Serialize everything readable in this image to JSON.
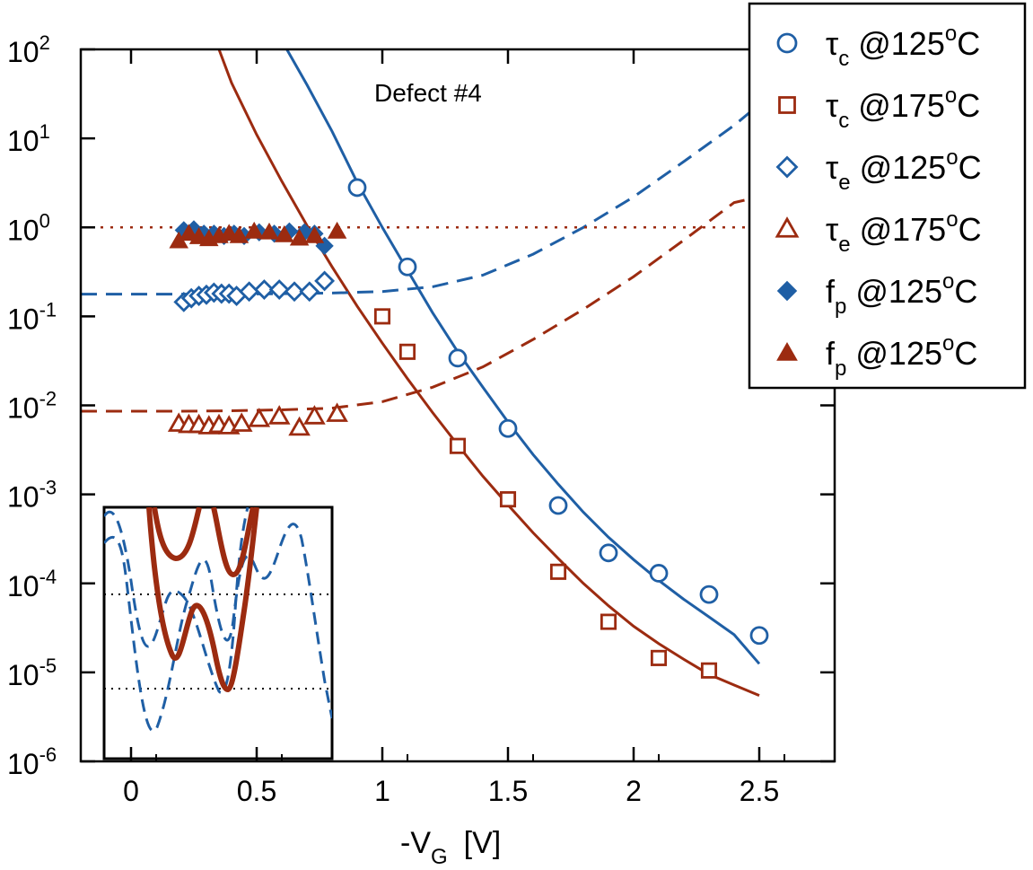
{
  "chart_data": {
    "type": "scatter",
    "x_scale": "linear",
    "y_scale": "log",
    "xlim": [
      -0.2,
      2.8
    ],
    "ylim": [
      1e-06,
      100
    ],
    "x_ticks": [
      0,
      0.5,
      1,
      1.5,
      2,
      2.5
    ],
    "x_tick_labels": [
      "0",
      "0.5",
      "1",
      "1.5",
      "2",
      "2.5"
    ],
    "y_ticks": [
      1e-06,
      1e-05,
      0.0001,
      0.001,
      0.01,
      0.1,
      1,
      10,
      100
    ],
    "y_tick_labels": [
      {
        "base": "10",
        "exp": "-6"
      },
      {
        "base": "10",
        "exp": "-5"
      },
      {
        "base": "10",
        "exp": "-4"
      },
      {
        "base": "10",
        "exp": "-3"
      },
      {
        "base": "10",
        "exp": "-2"
      },
      {
        "base": "10",
        "exp": "-1"
      },
      {
        "base": "10",
        "exp": "0"
      },
      {
        "base": "10",
        "exp": "1"
      },
      {
        "base": "10",
        "exp": "2"
      }
    ],
    "xlabel": {
      "main": "-V",
      "sub": "G",
      "unit": "[V]"
    },
    "ylabel": "",
    "annotation": "Defect #4",
    "grid": false,
    "legend_position": "top-right, outside",
    "colors": {
      "blue": "#1f5fa5",
      "red": "#9c2b10"
    },
    "series": [
      {
        "name": "τc @125°C",
        "label": {
          "sym": "τ",
          "sub": "c",
          "rest": " @125",
          "sup": "o",
          "tail": "C"
        },
        "marker": "circle-open",
        "color": "#1f5fa5",
        "points": [
          [
            0.9,
            2.8
          ],
          [
            1.1,
            0.36
          ],
          [
            1.3,
            0.034
          ],
          [
            1.5,
            0.0055
          ],
          [
            1.7,
            0.00075
          ],
          [
            1.9,
            0.00022
          ],
          [
            2.1,
            0.00013
          ],
          [
            2.3,
            7.5e-05
          ],
          [
            2.5,
            2.6e-05
          ]
        ]
      },
      {
        "name": "τc @175°C",
        "label": {
          "sym": "τ",
          "sub": "c",
          "rest": " @175",
          "sup": "o",
          "tail": "C"
        },
        "marker": "square-open",
        "color": "#9c2b10",
        "points": [
          [
            1.0,
            0.1
          ],
          [
            1.1,
            0.04
          ],
          [
            1.3,
            0.0035
          ],
          [
            1.5,
            0.00088
          ],
          [
            1.7,
            0.000135
          ],
          [
            1.9,
            3.7e-05
          ],
          [
            2.1,
            1.45e-05
          ],
          [
            2.3,
            1.05e-05
          ]
        ]
      },
      {
        "name": "τe @125°C",
        "label": {
          "sym": "τ",
          "sub": "e",
          "rest": " @125",
          "sup": "o",
          "tail": "C"
        },
        "marker": "diamond-open",
        "color": "#1f5fa5",
        "points": [
          [
            0.21,
            0.145
          ],
          [
            0.24,
            0.16
          ],
          [
            0.27,
            0.17
          ],
          [
            0.3,
            0.175
          ],
          [
            0.33,
            0.185
          ],
          [
            0.36,
            0.18
          ],
          [
            0.39,
            0.18
          ],
          [
            0.42,
            0.17
          ],
          [
            0.47,
            0.19
          ],
          [
            0.53,
            0.2
          ],
          [
            0.59,
            0.2
          ],
          [
            0.65,
            0.19
          ],
          [
            0.71,
            0.19
          ],
          [
            0.77,
            0.25
          ]
        ]
      },
      {
        "name": "τe @175°C",
        "label": {
          "sym": "τ",
          "sub": "e",
          "rest": " @175",
          "sup": "o",
          "tail": "C"
        },
        "marker": "triangle-open",
        "color": "#9c2b10",
        "points": [
          [
            0.19,
            0.0062
          ],
          [
            0.23,
            0.006
          ],
          [
            0.27,
            0.006
          ],
          [
            0.31,
            0.0058
          ],
          [
            0.35,
            0.006
          ],
          [
            0.39,
            0.0058
          ],
          [
            0.44,
            0.0062
          ],
          [
            0.51,
            0.007
          ],
          [
            0.59,
            0.0075
          ],
          [
            0.67,
            0.0056
          ],
          [
            0.73,
            0.0075
          ],
          [
            0.82,
            0.008
          ]
        ]
      },
      {
        "name": "fp @125°C (blue)",
        "label": {
          "sym": "f",
          "sub": "p",
          "rest": " @125",
          "sup": "o",
          "tail": "C"
        },
        "marker": "diamond-filled",
        "color": "#1f5fa5",
        "points": [
          [
            0.21,
            0.93
          ],
          [
            0.25,
            0.95
          ],
          [
            0.29,
            0.85
          ],
          [
            0.33,
            0.85
          ],
          [
            0.37,
            0.8
          ],
          [
            0.41,
            0.85
          ],
          [
            0.45,
            0.8
          ],
          [
            0.51,
            0.88
          ],
          [
            0.57,
            0.85
          ],
          [
            0.63,
            0.9
          ],
          [
            0.69,
            0.88
          ],
          [
            0.73,
            0.85
          ],
          [
            0.77,
            0.62
          ]
        ]
      },
      {
        "name": "fp @125°C (red)",
        "label": {
          "sym": "f",
          "sub": "p",
          "rest": " @125",
          "sup": "o",
          "tail": "C"
        },
        "marker": "triangle-filled",
        "color": "#9c2b10",
        "points": [
          [
            0.19,
            0.7
          ],
          [
            0.23,
            0.85
          ],
          [
            0.27,
            0.78
          ],
          [
            0.31,
            0.74
          ],
          [
            0.35,
            0.8
          ],
          [
            0.39,
            0.85
          ],
          [
            0.43,
            0.8
          ],
          [
            0.49,
            0.9
          ],
          [
            0.55,
            0.88
          ],
          [
            0.61,
            0.82
          ],
          [
            0.67,
            0.75
          ],
          [
            0.73,
            0.8
          ],
          [
            0.82,
            0.9
          ]
        ]
      }
    ],
    "fit_curves": [
      {
        "style": "solid",
        "color": "#1f5fa5",
        "points": [
          [
            0.62,
            100
          ],
          [
            0.7,
            40
          ],
          [
            0.8,
            12
          ],
          [
            0.9,
            3.2
          ],
          [
            1.0,
            1.0
          ],
          [
            1.1,
            0.33
          ],
          [
            1.2,
            0.11
          ],
          [
            1.3,
            0.04
          ],
          [
            1.4,
            0.016
          ],
          [
            1.5,
            0.0065
          ],
          [
            1.6,
            0.0028
          ],
          [
            1.7,
            0.0013
          ],
          [
            1.8,
            0.00063
          ],
          [
            1.9,
            0.00033
          ],
          [
            2.0,
            0.000185
          ],
          [
            2.1,
            0.000108
          ],
          [
            2.2,
            6.6e-05
          ],
          [
            2.3,
            4.2e-05
          ],
          [
            2.4,
            2.65e-05
          ],
          [
            2.5,
            1.25e-05
          ]
        ]
      },
      {
        "style": "solid",
        "color": "#9c2b10",
        "points": [
          [
            0.35,
            100
          ],
          [
            0.4,
            42
          ],
          [
            0.5,
            11
          ],
          [
            0.6,
            3.3
          ],
          [
            0.7,
            1.05
          ],
          [
            0.8,
            0.36
          ],
          [
            0.9,
            0.13
          ],
          [
            1.0,
            0.05
          ],
          [
            1.1,
            0.02
          ],
          [
            1.2,
            0.0083
          ],
          [
            1.3,
            0.0036
          ],
          [
            1.4,
            0.0016
          ],
          [
            1.5,
            0.00076
          ],
          [
            1.6,
            0.00037
          ],
          [
            1.7,
            0.00019
          ],
          [
            1.8,
            0.0001
          ],
          [
            1.9,
            5.6e-05
          ],
          [
            2.0,
            3.3e-05
          ],
          [
            2.1,
            2.1e-05
          ],
          [
            2.2,
            1.4e-05
          ],
          [
            2.3,
            9.5e-06
          ],
          [
            2.4,
            7.2e-06
          ],
          [
            2.5,
            5.5e-06
          ]
        ]
      },
      {
        "style": "dashed",
        "color": "#1f5fa5",
        "points": [
          [
            -0.2,
            0.178
          ],
          [
            0.0,
            0.178
          ],
          [
            0.2,
            0.178
          ],
          [
            0.4,
            0.178
          ],
          [
            0.6,
            0.18
          ],
          [
            0.8,
            0.183
          ],
          [
            1.0,
            0.19
          ],
          [
            1.2,
            0.215
          ],
          [
            1.4,
            0.29
          ],
          [
            1.6,
            0.5
          ],
          [
            1.8,
            1.0
          ],
          [
            2.0,
            2.2
          ],
          [
            2.2,
            5.5
          ],
          [
            2.4,
            14
          ],
          [
            2.5,
            24
          ]
        ]
      },
      {
        "style": "dashed",
        "color": "#9c2b10",
        "points": [
          [
            -0.2,
            0.0086
          ],
          [
            0.0,
            0.0086
          ],
          [
            0.2,
            0.0086
          ],
          [
            0.4,
            0.0087
          ],
          [
            0.6,
            0.0089
          ],
          [
            0.8,
            0.0093
          ],
          [
            1.0,
            0.011
          ],
          [
            1.2,
            0.016
          ],
          [
            1.4,
            0.027
          ],
          [
            1.6,
            0.055
          ],
          [
            1.8,
            0.12
          ],
          [
            2.0,
            0.28
          ],
          [
            2.2,
            0.72
          ],
          [
            2.4,
            1.9
          ],
          [
            2.5,
            2.2
          ]
        ]
      },
      {
        "style": "dotted",
        "color": "#9c2b10",
        "points": [
          [
            -0.2,
            1
          ],
          [
            2.8,
            1
          ]
        ]
      }
    ],
    "inset": {
      "title": "",
      "description_curves": "schematic energy profiles (no axes)"
    }
  }
}
